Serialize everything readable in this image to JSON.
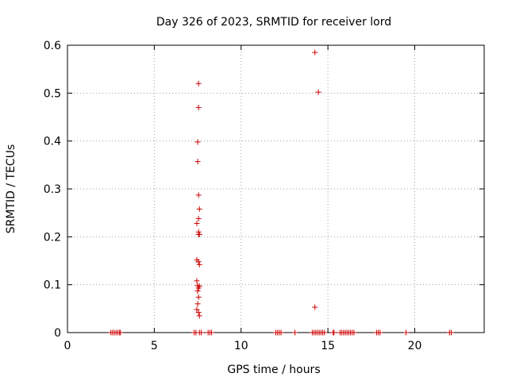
{
  "chart_data": {
    "type": "scatter",
    "title": "Day 326 of 2023, SRMTID for receiver lord",
    "xlabel": "GPS time / hours",
    "ylabel": "SRMTID / TECUs",
    "xlim": [
      0,
      24
    ],
    "ylim": [
      0,
      0.6
    ],
    "xticks": [
      0,
      5,
      10,
      15,
      20
    ],
    "yticks": [
      0,
      0.1,
      0.2,
      0.3,
      0.4,
      0.5,
      0.6
    ],
    "grid": true,
    "marker": "+",
    "color": "#cc0000",
    "series": [
      {
        "name": "",
        "x": [
          7.55,
          7.55,
          7.5,
          7.5,
          7.55,
          7.6,
          7.55,
          7.45,
          7.55,
          7.6,
          7.55,
          7.45,
          7.55,
          7.6,
          7.45,
          7.5,
          7.55,
          7.6,
          7.5,
          7.55,
          7.5,
          7.45,
          7.55,
          7.6,
          14.25,
          14.45,
          14.25
        ],
        "y": [
          0.52,
          0.47,
          0.398,
          0.357,
          0.287,
          0.258,
          0.238,
          0.228,
          0.21,
          0.205,
          0.205,
          0.152,
          0.148,
          0.142,
          0.108,
          0.098,
          0.093,
          0.097,
          0.087,
          0.074,
          0.06,
          0.048,
          0.042,
          0.035,
          0.585,
          0.502,
          0.053
        ]
      },
      {
        "name": "",
        "x": [
          2.5,
          2.6,
          2.7,
          2.8,
          2.9,
          3.0,
          3.05,
          7.3,
          7.4,
          7.6,
          7.7,
          8.1,
          8.2,
          8.3,
          12.0,
          12.1,
          12.2,
          12.3,
          13.1,
          14.1,
          14.2,
          14.3,
          14.4,
          14.5,
          14.6,
          14.7,
          14.8,
          15.3,
          15.35,
          15.7,
          15.8,
          15.9,
          16.0,
          16.1,
          16.2,
          16.3,
          16.4,
          16.5,
          17.8,
          17.9,
          18.0,
          19.5,
          22.0,
          22.1
        ],
        "y": [
          0,
          0,
          0,
          0,
          0,
          0,
          0,
          0,
          0,
          0,
          0,
          0,
          0,
          0,
          0,
          0,
          0,
          0,
          0,
          0,
          0,
          0,
          0,
          0,
          0,
          0,
          0,
          0,
          0,
          0,
          0,
          0,
          0,
          0,
          0,
          0,
          0,
          0,
          0,
          0,
          0,
          0,
          0,
          0
        ]
      }
    ]
  }
}
